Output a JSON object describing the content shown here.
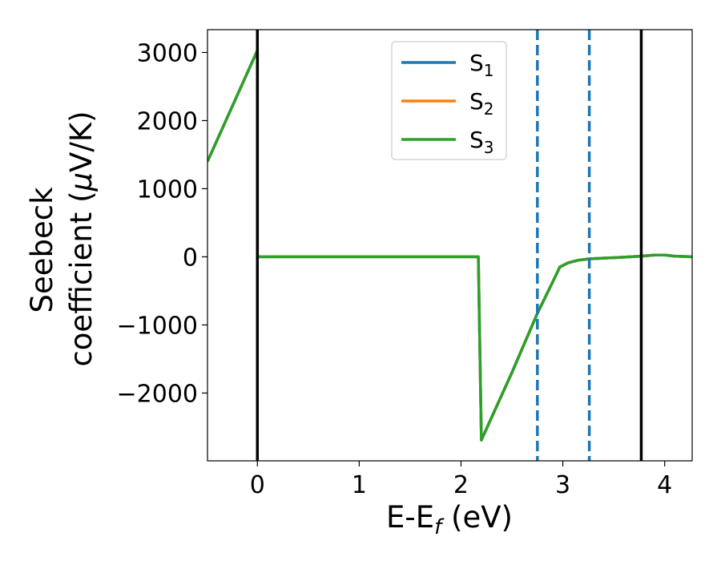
{
  "chart_data": {
    "type": "line",
    "xlabel": {
      "main": "E-E",
      "sub": "f",
      "unit": " (eV)"
    },
    "ylabel": {
      "line1": "Seebeck",
      "line2_prefix": "coefficient  (",
      "line2_mu": "μ",
      "line2_suffix": "V/K)"
    },
    "xlim": [
      -0.49,
      4.27
    ],
    "ylim": [
      -2995,
      3335
    ],
    "xticks": [
      0,
      1,
      2,
      3,
      4
    ],
    "xtick_labels": [
      "0",
      "1",
      "2",
      "3",
      "4"
    ],
    "yticks": [
      -2000,
      -1000,
      0,
      1000,
      2000,
      3000
    ],
    "ytick_labels": [
      "−2000",
      "−1000",
      "0",
      "1000",
      "2000",
      "3000"
    ],
    "grid": false,
    "legend_position": "upper-center",
    "vlines_solid": [
      0.0,
      3.77
    ],
    "vlines_dashed": [
      2.75,
      3.26
    ],
    "series": [
      {
        "name": {
          "base": "S",
          "sub": "1"
        },
        "color": "#1f77b4",
        "x": [
          -0.49,
          0.0,
          0.0,
          2.17,
          2.17,
          2.2,
          2.5,
          2.75,
          2.9,
          2.97,
          3.05,
          3.15,
          3.26,
          3.4,
          3.6,
          3.77,
          3.9,
          4.0,
          4.1,
          4.27
        ],
        "y": [
          1400,
          3030,
          0,
          0,
          0,
          -2690,
          -1700,
          -830,
          -370,
          -150,
          -90,
          -50,
          -30,
          -20,
          -5,
          10,
          25,
          25,
          10,
          0
        ]
      },
      {
        "name": {
          "base": "S",
          "sub": "2"
        },
        "color": "#ff7f0e",
        "x": [
          -0.49,
          0.0,
          0.0,
          2.17,
          2.17,
          2.2,
          2.5,
          2.75,
          2.9,
          2.97,
          3.05,
          3.15,
          3.26,
          3.4,
          3.6,
          3.77,
          3.9,
          4.0,
          4.1,
          4.27
        ],
        "y": [
          1400,
          3030,
          0,
          0,
          0,
          -2690,
          -1700,
          -830,
          -370,
          -150,
          -90,
          -50,
          -30,
          -20,
          -5,
          10,
          25,
          25,
          10,
          0
        ]
      },
      {
        "name": {
          "base": "S",
          "sub": "3"
        },
        "color": "#2ca02c",
        "x": [
          -0.49,
          0.0,
          0.0,
          2.17,
          2.17,
          2.2,
          2.5,
          2.75,
          2.9,
          2.97,
          3.05,
          3.15,
          3.26,
          3.4,
          3.6,
          3.77,
          3.9,
          4.0,
          4.1,
          4.27
        ],
        "y": [
          1400,
          3030,
          0,
          0,
          0,
          -2690,
          -1700,
          -830,
          -370,
          -150,
          -90,
          -50,
          -30,
          -20,
          -5,
          10,
          25,
          25,
          10,
          0
        ]
      }
    ]
  }
}
